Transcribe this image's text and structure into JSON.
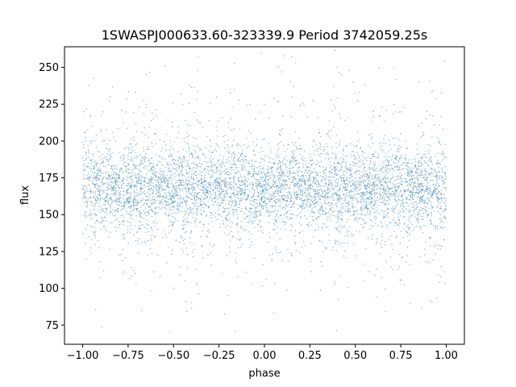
{
  "chart_data": {
    "type": "scatter",
    "title": "1SWASPJ000633.60-323339.9 Period 3742059.25s",
    "xlabel": "phase",
    "ylabel": "flux",
    "xlim": [
      -1.1,
      1.1
    ],
    "ylim": [
      62,
      264
    ],
    "x_ticks": [
      -1.0,
      -0.75,
      -0.5,
      -0.25,
      0.0,
      0.25,
      0.5,
      0.75,
      1.0
    ],
    "x_tick_labels": [
      "−1.00",
      "−0.75",
      "−0.50",
      "−0.25",
      "0.00",
      "0.25",
      "0.50",
      "0.75",
      "1.00"
    ],
    "y_ticks": [
      75,
      100,
      125,
      150,
      175,
      200,
      225,
      250
    ],
    "y_tick_labels": [
      "75",
      "100",
      "125",
      "150",
      "175",
      "200",
      "225",
      "250"
    ],
    "grid": false,
    "series": [
      {
        "color": "#1f77b4",
        "x_range": [
          -1.0,
          1.0
        ],
        "y_range": [
          70,
          262
        ],
        "median": 168,
        "dense_band": [
          150,
          185
        ],
        "points": [
          [
            -1.0,
            168
          ],
          [
            -0.98,
            120
          ],
          [
            -0.95,
            210
          ],
          [
            -0.92,
            175
          ],
          [
            -0.9,
            140
          ],
          [
            -0.85,
            230
          ],
          [
            -0.8,
            165
          ],
          [
            -0.75,
            190
          ],
          [
            -0.72,
            112
          ],
          [
            -0.7,
            160
          ],
          [
            -0.65,
            245
          ],
          [
            -0.6,
            150
          ],
          [
            -0.55,
            172
          ],
          [
            -0.5,
            100
          ],
          [
            -0.45,
            225
          ],
          [
            -0.4,
            168
          ],
          [
            -0.35,
            135
          ],
          [
            -0.3,
            200
          ],
          [
            -0.25,
            170
          ],
          [
            -0.2,
            95
          ],
          [
            -0.15,
            182
          ],
          [
            -0.1,
            160
          ],
          [
            -0.05,
            215
          ],
          [
            0.0,
            170
          ],
          [
            0.05,
            140
          ],
          [
            0.1,
            178
          ],
          [
            0.15,
            230
          ],
          [
            0.2,
            155
          ],
          [
            0.25,
            120
          ],
          [
            0.3,
            195
          ],
          [
            0.35,
            168
          ],
          [
            0.4,
            250
          ],
          [
            0.45,
            145
          ],
          [
            0.5,
            175
          ],
          [
            0.55,
            105
          ],
          [
            0.6,
            220
          ],
          [
            0.65,
            165
          ],
          [
            0.7,
            130
          ],
          [
            0.75,
            205
          ],
          [
            0.8,
            170
          ],
          [
            0.85,
            240
          ],
          [
            0.9,
            150
          ],
          [
            0.95,
            185
          ],
          [
            1.0,
            168
          ]
        ]
      }
    ]
  }
}
